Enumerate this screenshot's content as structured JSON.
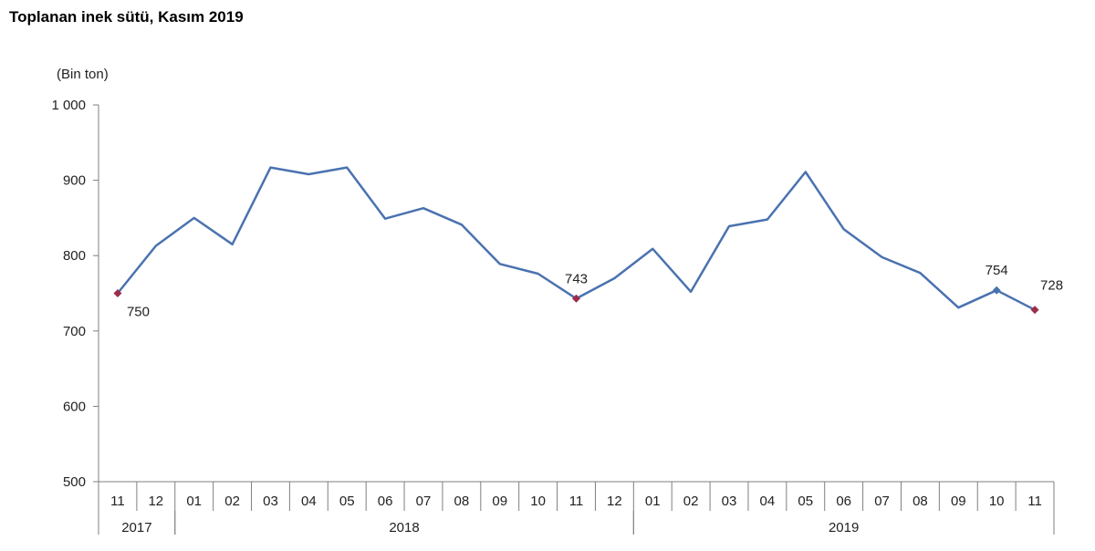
{
  "chart_data": {
    "type": "line",
    "title": "Toplanan inek sütü, Kasım 2019",
    "ylabel": "(Bin ton)",
    "xlabel": "",
    "ylim": [
      500,
      1000
    ],
    "y_ticks": [
      {
        "value": 500,
        "label": "500"
      },
      {
        "value": 600,
        "label": "600"
      },
      {
        "value": 700,
        "label": "700"
      },
      {
        "value": 800,
        "label": "800"
      },
      {
        "value": 900,
        "label": "900"
      },
      {
        "value": 1000,
        "label": "1 000"
      }
    ],
    "categories": [
      "11",
      "12",
      "01",
      "02",
      "03",
      "04",
      "05",
      "06",
      "07",
      "08",
      "09",
      "10",
      "11",
      "12",
      "01",
      "02",
      "03",
      "04",
      "05",
      "06",
      "07",
      "08",
      "09",
      "10",
      "11"
    ],
    "years": [
      {
        "label": "2017",
        "start": 0,
        "end": 1
      },
      {
        "label": "2018",
        "start": 2,
        "end": 13
      },
      {
        "label": "2019",
        "start": 14,
        "end": 24
      }
    ],
    "values": [
      750,
      813,
      850,
      815,
      917,
      908,
      917,
      849,
      863,
      841,
      789,
      776,
      743,
      770,
      809,
      752,
      839,
      848,
      911,
      835,
      798,
      777,
      731,
      754,
      728
    ],
    "line_color": "#4a72b0",
    "markers": [
      {
        "index": 0,
        "label": "750",
        "color": "#9b2d4b",
        "label_pos": "below-right"
      },
      {
        "index": 12,
        "label": "743",
        "color": "#9b2d4b",
        "label_pos": "above"
      },
      {
        "index": 23,
        "label": "754",
        "color": "#4a72b0",
        "label_pos": "above"
      },
      {
        "index": 24,
        "label": "728",
        "color": "#9b2d4b",
        "label_pos": "above-right"
      }
    ],
    "grid": false,
    "legend": "none"
  }
}
